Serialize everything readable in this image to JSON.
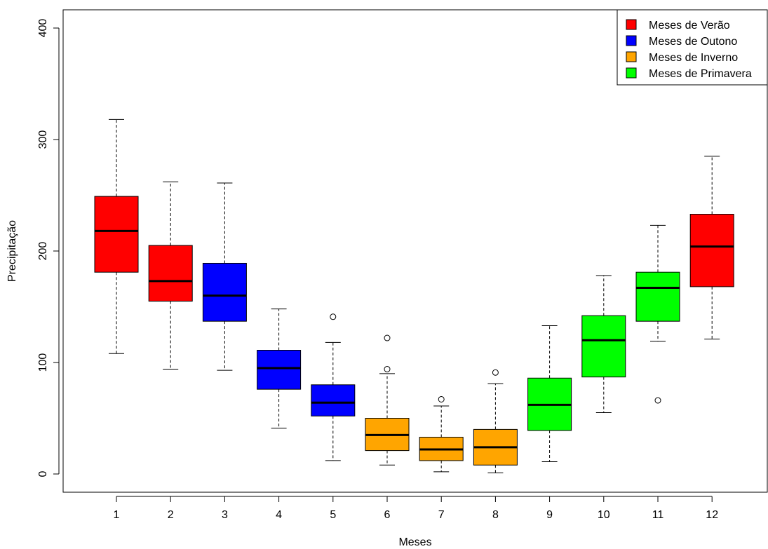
{
  "chart_data": {
    "type": "boxplot",
    "xlabel": "Meses",
    "ylabel": "Precipitação",
    "ylim": [
      -15,
      415
    ],
    "yticks": [
      0,
      100,
      200,
      300,
      400
    ],
    "categories": [
      "1",
      "2",
      "3",
      "4",
      "5",
      "6",
      "7",
      "8",
      "9",
      "10",
      "11",
      "12"
    ],
    "legend": {
      "position": "top-right",
      "entries": [
        {
          "label": "Meses de Verão",
          "color": "#ff0000"
        },
        {
          "label": "Meses de Outono",
          "color": "#0000ff"
        },
        {
          "label": "Meses de Inverno",
          "color": "#ffa500"
        },
        {
          "label": "Meses de Primavera",
          "color": "#00ff00"
        }
      ]
    },
    "boxes": [
      {
        "category": "1",
        "season": "Meses de Verão",
        "color": "#ff0000",
        "whisker_low": 108,
        "q1": 181,
        "median": 218,
        "q3": 249,
        "whisker_high": 318,
        "outliers": []
      },
      {
        "category": "2",
        "season": "Meses de Verão",
        "color": "#ff0000",
        "whisker_low": 94,
        "q1": 155,
        "median": 173,
        "q3": 205,
        "whisker_high": 262,
        "outliers": []
      },
      {
        "category": "3",
        "season": "Meses de Outono",
        "color": "#0000ff",
        "whisker_low": 93,
        "q1": 137,
        "median": 160,
        "q3": 189,
        "whisker_high": 261,
        "outliers": []
      },
      {
        "category": "4",
        "season": "Meses de Outono",
        "color": "#0000ff",
        "whisker_low": 41,
        "q1": 76,
        "median": 95,
        "q3": 111,
        "whisker_high": 148,
        "outliers": []
      },
      {
        "category": "5",
        "season": "Meses de Outono",
        "color": "#0000ff",
        "whisker_low": 12,
        "q1": 52,
        "median": 64,
        "q3": 80,
        "whisker_high": 118,
        "outliers": [
          141
        ]
      },
      {
        "category": "6",
        "season": "Meses de Inverno",
        "color": "#ffa500",
        "whisker_low": 8,
        "q1": 21,
        "median": 35,
        "q3": 50,
        "whisker_high": 90,
        "outliers": [
          94,
          122
        ]
      },
      {
        "category": "7",
        "season": "Meses de Inverno",
        "color": "#ffa500",
        "whisker_low": 2,
        "q1": 12,
        "median": 22,
        "q3": 33,
        "whisker_high": 61,
        "outliers": [
          67
        ]
      },
      {
        "category": "8",
        "season": "Meses de Inverno",
        "color": "#ffa500",
        "whisker_low": 1,
        "q1": 8,
        "median": 24,
        "q3": 40,
        "whisker_high": 81,
        "outliers": [
          91
        ]
      },
      {
        "category": "9",
        "season": "Meses de Primavera",
        "color": "#00ff00",
        "whisker_low": 11,
        "q1": 39,
        "median": 62,
        "q3": 86,
        "whisker_high": 133,
        "outliers": []
      },
      {
        "category": "10",
        "season": "Meses de Primavera",
        "color": "#00ff00",
        "whisker_low": 55,
        "q1": 87,
        "median": 120,
        "q3": 142,
        "whisker_high": 178,
        "outliers": []
      },
      {
        "category": "11",
        "season": "Meses de Primavera",
        "color": "#00ff00",
        "whisker_low": 119,
        "q1": 137,
        "median": 167,
        "q3": 181,
        "whisker_high": 223,
        "outliers": [
          66
        ]
      },
      {
        "category": "12",
        "season": "Meses de Verão",
        "color": "#ff0000",
        "whisker_low": 121,
        "q1": 168,
        "median": 204,
        "q3": 233,
        "whisker_high": 285,
        "outliers": []
      }
    ]
  }
}
